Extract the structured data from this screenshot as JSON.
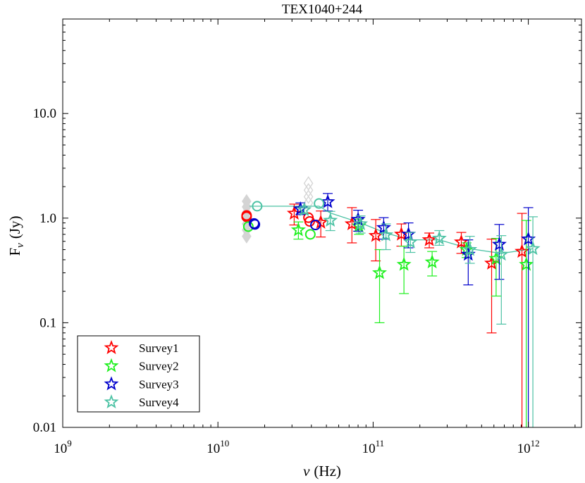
{
  "chart_data": {
    "type": "scatter",
    "title": "TEX1040+244",
    "xlabel": {
      "symbol": "ν",
      "unit": "(Hz)"
    },
    "ylabel": {
      "symbol": "F",
      "subscript": "ν",
      "unit": "(Jy)"
    },
    "xscale": "log",
    "yscale": "log",
    "xlim": [
      1000000000.0,
      2200000000000.0
    ],
    "ylim": [
      0.01,
      80
    ],
    "grid": false,
    "xticks": [
      {
        "value": 1000000000.0,
        "base": "10",
        "exp": "9"
      },
      {
        "value": 10000000000.0,
        "base": "10",
        "exp": "10"
      },
      {
        "value": 100000000000.0,
        "base": "10",
        "exp": "11"
      },
      {
        "value": 1000000000000.0,
        "base": "10",
        "exp": "12"
      }
    ],
    "yticks": [
      {
        "value": 0.01,
        "label": "0.01"
      },
      {
        "value": 0.1,
        "label": "0.1"
      },
      {
        "value": 1,
        "label": "1.0"
      },
      {
        "value": 10,
        "label": "10.0"
      }
    ],
    "legend": {
      "location": "bottom-left"
    },
    "series": [
      {
        "name": "Survey1",
        "color": "#ff0000",
        "stars": [
          {
            "x": 31000000000.0,
            "y": 1.11,
            "lo": 0.86,
            "hi": 1.36
          },
          {
            "x": 46000000000.0,
            "y": 0.91,
            "lo": 0.66,
            "hi": 1.17
          },
          {
            "x": 73000000000.0,
            "y": 0.88,
            "lo": 0.58,
            "hi": 1.26
          },
          {
            "x": 104000000000.0,
            "y": 0.68,
            "lo": 0.39,
            "hi": 0.97
          },
          {
            "x": 152000000000.0,
            "y": 0.7,
            "lo": 0.54,
            "hi": 0.88
          },
          {
            "x": 230000000000.0,
            "y": 0.62,
            "lo": 0.52,
            "hi": 0.72
          },
          {
            "x": 370000000000.0,
            "y": 0.59,
            "lo": 0.46,
            "hi": 0.73
          },
          {
            "x": 580000000000.0,
            "y": 0.37,
            "lo": 0.08,
            "hi": 0.63
          },
          {
            "x": 910000000000.0,
            "y": 0.48,
            "lo": 0,
            "hi": 1.11
          }
        ],
        "circles": [
          {
            "x": 15300000000.0,
            "y": 1.06
          },
          {
            "x": 15300000000.0,
            "y": 1.03
          },
          {
            "x": 38300000000.0,
            "y": 1.01
          },
          {
            "x": 39000000000.0,
            "y": 0.93
          }
        ]
      },
      {
        "name": "Survey2",
        "color": "#1ef01e",
        "stars": [
          {
            "x": 33000000000.0,
            "y": 0.77,
            "lo": 0.63,
            "hi": 0.92
          },
          {
            "x": 81000000000.0,
            "y": 0.84,
            "lo": 0.7,
            "hi": 0.98
          },
          {
            "x": 110000000000.0,
            "y": 0.3,
            "lo": 0.1,
            "hi": 0.5
          },
          {
            "x": 158000000000.0,
            "y": 0.36,
            "lo": 0.19,
            "hi": 0.54
          },
          {
            "x": 240000000000.0,
            "y": 0.38,
            "lo": 0.28,
            "hi": 0.48
          },
          {
            "x": 400000000000.0,
            "y": 0.5,
            "lo": 0.42,
            "hi": 0.58
          },
          {
            "x": 620000000000.0,
            "y": 0.41,
            "lo": 0.18,
            "hi": 0.64
          },
          {
            "x": 970000000000.0,
            "y": 0.36,
            "lo": 0,
            "hi": 0.95
          }
        ],
        "circles": [
          {
            "x": 15700000000.0,
            "y": 0.83
          },
          {
            "x": 39400000000.0,
            "y": 0.7
          }
        ]
      },
      {
        "name": "Survey3",
        "color": "#0000cc",
        "stars": [
          {
            "x": 34000000000.0,
            "y": 1.22,
            "lo": 1.08,
            "hi": 1.4
          },
          {
            "x": 51000000000.0,
            "y": 1.43,
            "lo": 1.17,
            "hi": 1.72
          },
          {
            "x": 80000000000.0,
            "y": 0.97,
            "lo": 0.75,
            "hi": 1.19
          },
          {
            "x": 117000000000.0,
            "y": 0.81,
            "lo": 0.63,
            "hi": 1.01
          },
          {
            "x": 169000000000.0,
            "y": 0.7,
            "lo": 0.52,
            "hi": 0.9
          },
          {
            "x": 410000000000.0,
            "y": 0.45,
            "lo": 0.23,
            "hi": 0.62
          },
          {
            "x": 650000000000.0,
            "y": 0.56,
            "lo": 0.26,
            "hi": 0.87
          },
          {
            "x": 1000000000000.0,
            "y": 0.63,
            "lo": 0,
            "hi": 1.26
          }
        ],
        "circles": [
          {
            "x": 17100000000.0,
            "y": 0.89
          },
          {
            "x": 17300000000.0,
            "y": 0.87
          },
          {
            "x": 42500000000.0,
            "y": 0.86
          }
        ]
      },
      {
        "name": "Survey4",
        "color": "#4cc2a4",
        "stars": [
          {
            "x": 36000000000.0,
            "y": 1.2,
            "lo": 1.1,
            "hi": 1.3
          },
          {
            "x": 53000000000.0,
            "y": 0.95,
            "lo": 0.76,
            "hi": 1.16
          },
          {
            "x": 83000000000.0,
            "y": 0.88,
            "lo": 0.72,
            "hi": 1.05
          },
          {
            "x": 121000000000.0,
            "y": 0.69,
            "lo": 0.5,
            "hi": 0.88
          },
          {
            "x": 174000000000.0,
            "y": 0.59,
            "lo": 0.47,
            "hi": 0.73
          },
          {
            "x": 267000000000.0,
            "y": 0.64,
            "lo": 0.55,
            "hi": 0.76
          },
          {
            "x": 420000000000.0,
            "y": 0.5,
            "lo": 0.37,
            "hi": 0.67
          },
          {
            "x": 670000000000.0,
            "y": 0.45,
            "lo": 0.097,
            "hi": 0.68
          },
          {
            "x": 1070000000000.0,
            "y": 0.51,
            "lo": 0,
            "hi": 1.03
          }
        ],
        "circles": [
          {
            "x": 17900000000.0,
            "y": 1.3
          },
          {
            "x": 44800000000.0,
            "y": 1.38
          }
        ]
      }
    ],
    "reference_points": {
      "color": "#d4d4d4",
      "filled": [
        {
          "x": 15300000000.0,
          "y": 1.45
        },
        {
          "x": 15300000000.0,
          "y": 1.28
        },
        {
          "x": 15300000000.0,
          "y": 1.13
        },
        {
          "x": 15300000000.0,
          "y": 1.0
        },
        {
          "x": 15300000000.0,
          "y": 0.88
        },
        {
          "x": 15300000000.0,
          "y": 0.77
        },
        {
          "x": 15300000000.0,
          "y": 0.67
        }
      ],
      "open": [
        {
          "x": 38300000000.0,
          "y": 2.15
        },
        {
          "x": 38300000000.0,
          "y": 1.85
        },
        {
          "x": 38300000000.0,
          "y": 1.6
        },
        {
          "x": 38300000000.0,
          "y": 1.4
        }
      ]
    },
    "trend_line": {
      "color": "#4cc2a4",
      "points": [
        {
          "x": 16000000000.0,
          "y": 1.3
        },
        {
          "x": 44800000000.0,
          "y": 1.3
        },
        {
          "x": 53000000000.0,
          "y": 1.12
        },
        {
          "x": 83000000000.0,
          "y": 0.9
        },
        {
          "x": 121000000000.0,
          "y": 0.72
        },
        {
          "x": 174000000000.0,
          "y": 0.62
        },
        {
          "x": 267000000000.0,
          "y": 0.62
        },
        {
          "x": 420000000000.0,
          "y": 0.51
        },
        {
          "x": 670000000000.0,
          "y": 0.46
        },
        {
          "x": 1070000000000.0,
          "y": 0.51
        }
      ]
    }
  }
}
